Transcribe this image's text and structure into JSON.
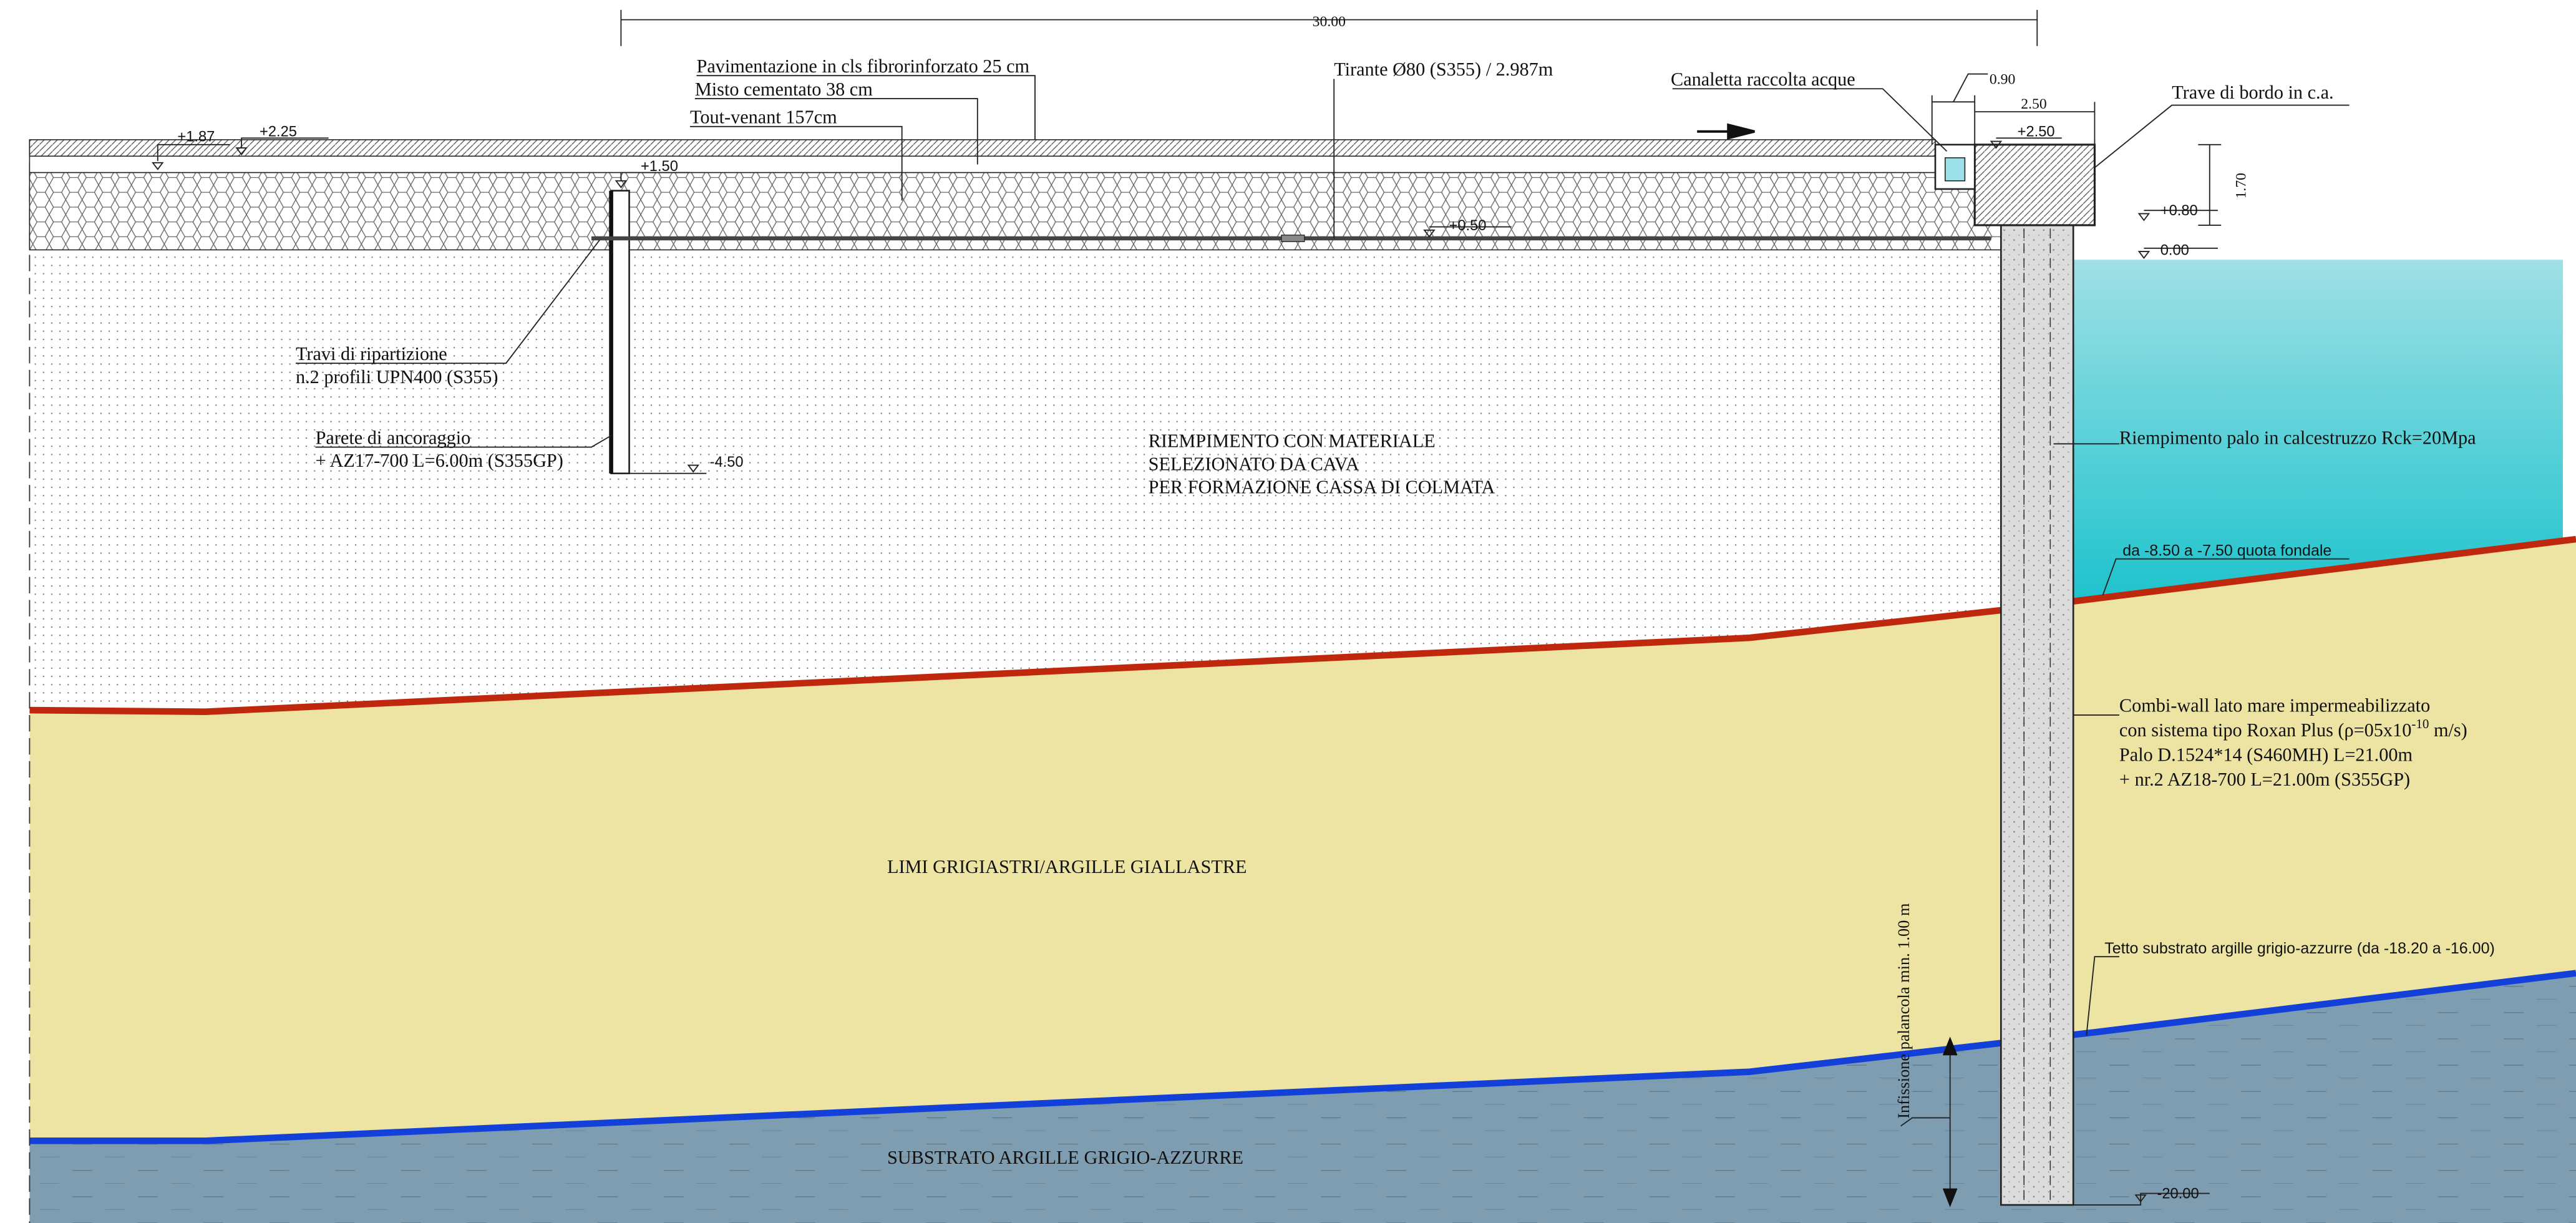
{
  "dimensions": {
    "total_width": "30.00",
    "canaletta_width": "0.90",
    "trave_width": "2.50",
    "trave_height": "1.70"
  },
  "layers": {
    "pavimentazione": "Pavimentazione in cls fibrorinforzato 25 cm",
    "misto": "Misto cementato 38 cm",
    "tout_venant": "Tout-venant 157cm"
  },
  "tirante": "Tirante Ø80 (S355) / 2.987m",
  "canaletta": "Canaletta raccolta acque",
  "trave": "Trave di bordo in c.a.",
  "elevations": {
    "pav_a": "+1.87",
    "pav_b": "+2.25",
    "anchor_top": "+1.50",
    "tie": "+0.50",
    "anchor_bottom": "-4.50",
    "trave_top": "+2.50",
    "cap_bottom": "+0.80",
    "sea_level": "0.00",
    "toe": "-20.00"
  },
  "travi": [
    "Travi di ripartizione",
    "n.2 profili UPN400 (S355)"
  ],
  "parete": [
    "Parete di ancoraggio",
    "+ AZ17-700 L=6.00m (S355GP)"
  ],
  "riempimento": [
    "RIEMPIMENTO CON MATERIALE",
    "SELEZIONATO DA CAVA",
    "PER FORMAZIONE CASSA DI COLMATA"
  ],
  "palo_fill": "Riempimento palo in calcestruzzo Rck=20Mpa",
  "fondale": "da -8.50 a -7.50 quota fondale",
  "combi_wall": {
    "lines": [
      "Combi-wall lato mare impermeabilizzato",
      "con sistema tipo Roxan Plus (ρ=05x10",
      "Palo D.1524*14 (S460MH) L=21.00m",
      "+ nr.2 AZ18-700 L=21.00m (S355GP)"
    ],
    "exponent": "-10",
    "unit": " m/s)"
  },
  "limi": "LIMI GRIGIASTRI/ARGILLE GIALLASTRE",
  "tetto": "Tetto substrato argille grigio-azzurre (da -18.20 a -16.00)",
  "infissione": "Infissione palancola min. 1.00 m",
  "substrato": "SUBSTRATO ARGILLE GRIGIO-AZZURRE"
}
